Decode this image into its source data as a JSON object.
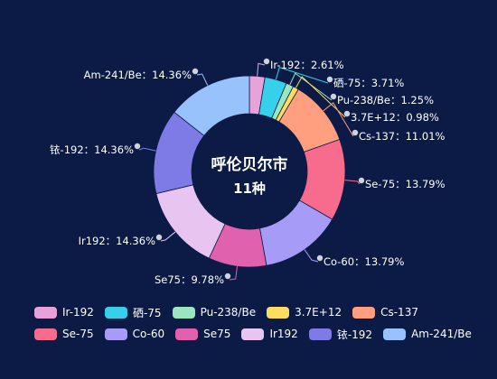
{
  "chart_data": {
    "type": "pie",
    "variant": "donut",
    "center_title": "呼伦贝尔市",
    "center_subtitle": "11种",
    "label_separator": "：",
    "legend_position": "bottom",
    "slices": [
      {
        "name": "Ir-192",
        "percent": "2.61%",
        "value": 2.61,
        "color": "#e7a3d9"
      },
      {
        "name": "硒-75",
        "percent": "3.71%",
        "value": 3.71,
        "color": "#36d0ea"
      },
      {
        "name": "Pu-238/Be",
        "percent": "1.25%",
        "value": 1.25,
        "color": "#9ae7bf"
      },
      {
        "name": "3.7E+12",
        "percent": "0.98%",
        "value": 0.98,
        "color": "#fddd60"
      },
      {
        "name": "Cs-137",
        "percent": "11.01%",
        "value": 11.01,
        "color": "#ff9f7f"
      },
      {
        "name": "Se-75",
        "percent": "13.79%",
        "value": 13.79,
        "color": "#f76b8d"
      },
      {
        "name": "Co-60",
        "percent": "13.79%",
        "value": 13.79,
        "color": "#a69cf7"
      },
      {
        "name": "Se75",
        "percent": "9.78%",
        "value": 9.78,
        "color": "#e062ae"
      },
      {
        "name": "Ir192",
        "percent": "14.36%",
        "value": 14.36,
        "color": "#e8c5f1"
      },
      {
        "name": "铱-192",
        "percent": "14.36%",
        "value": 14.36,
        "color": "#7e7be6"
      },
      {
        "name": "Am-241/Be",
        "percent": "14.36%",
        "value": 14.36,
        "color": "#97c2fc"
      }
    ]
  }
}
